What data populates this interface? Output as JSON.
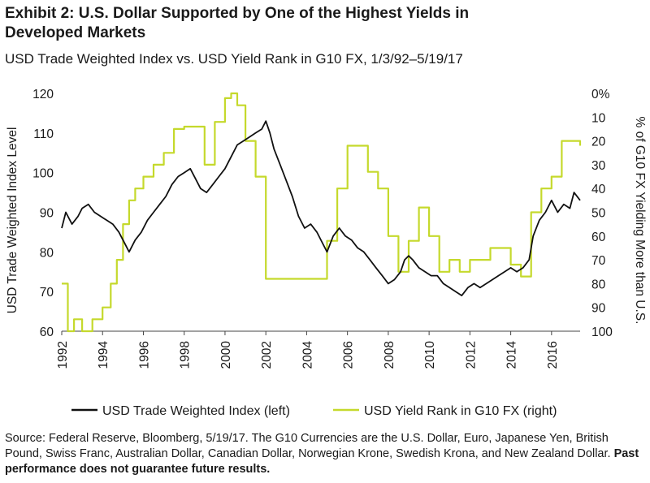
{
  "chart_data": {
    "type": "line",
    "title": "Exhibit 2: U.S. Dollar Supported by One of the Highest Yields in Developed Markets",
    "subtitle": "USD Trade Weighted Index vs. USD Yield Rank in G10 FX, 1/3/92–5/19/17",
    "ylabel_left": "USD Trade Weighted Index Level",
    "ylabel_right": "% of G10 FX Yielding More than U.S.",
    "x_ticks": [
      "1992",
      "1994",
      "1996",
      "1998",
      "2000",
      "2002",
      "2004",
      "2006",
      "2008",
      "2010",
      "2012",
      "2014",
      "2016"
    ],
    "y_left_ticks": [
      "60",
      "70",
      "80",
      "90",
      "100",
      "110",
      "120"
    ],
    "y_right_ticks": [
      "0%",
      "10",
      "20",
      "30",
      "40",
      "50",
      "60",
      "70",
      "80",
      "90",
      "100"
    ],
    "xlim": [
      1992,
      2017.4
    ],
    "ylim_left": [
      60,
      120
    ],
    "ylim_right_inverted": [
      0,
      100
    ],
    "series": [
      {
        "name": "USD Trade Weighted Index (left)",
        "axis": "left",
        "color": "#111111",
        "x": [
          1992.0,
          1992.2,
          1992.5,
          1992.8,
          1993.0,
          1993.3,
          1993.6,
          1993.9,
          1994.2,
          1994.5,
          1994.8,
          1995.1,
          1995.3,
          1995.6,
          1995.9,
          1996.2,
          1996.5,
          1996.8,
          1997.1,
          1997.4,
          1997.7,
          1998.0,
          1998.3,
          1998.6,
          1998.8,
          1999.1,
          1999.4,
          1999.7,
          2000.0,
          2000.3,
          2000.6,
          2000.9,
          2001.2,
          2001.5,
          2001.8,
          2002.0,
          2002.2,
          2002.4,
          2002.7,
          2003.0,
          2003.3,
          2003.6,
          2003.9,
          2004.2,
          2004.5,
          2004.8,
          2005.0,
          2005.3,
          2005.6,
          2005.9,
          2006.2,
          2006.5,
          2006.8,
          2007.1,
          2007.4,
          2007.7,
          2008.0,
          2008.3,
          2008.6,
          2008.8,
          2009.0,
          2009.2,
          2009.5,
          2009.8,
          2010.1,
          2010.4,
          2010.7,
          2011.0,
          2011.3,
          2011.6,
          2011.9,
          2012.2,
          2012.5,
          2012.8,
          2013.1,
          2013.4,
          2013.7,
          2014.0,
          2014.3,
          2014.6,
          2014.9,
          2015.1,
          2015.4,
          2015.7,
          2016.0,
          2016.3,
          2016.6,
          2016.9,
          2017.1,
          2017.4
        ],
        "values": [
          86,
          90,
          87,
          89,
          91,
          92,
          90,
          89,
          88,
          87,
          85,
          82,
          80,
          83,
          85,
          88,
          90,
          92,
          94,
          97,
          99,
          100,
          101,
          98,
          96,
          95,
          97,
          99,
          101,
          104,
          107,
          108,
          109,
          110,
          111,
          113,
          110,
          106,
          102,
          98,
          94,
          89,
          86,
          87,
          85,
          82,
          80,
          84,
          86,
          84,
          83,
          81,
          80,
          78,
          76,
          74,
          72,
          73,
          75,
          78,
          79,
          78,
          76,
          75,
          74,
          74,
          72,
          71,
          70,
          69,
          71,
          72,
          71,
          72,
          73,
          74,
          75,
          76,
          75,
          76,
          78,
          84,
          88,
          90,
          93,
          90,
          92,
          91,
          95,
          93
        ]
      },
      {
        "name": "USD Yield Rank in G10 FX (right)",
        "axis": "right",
        "color": "#c5d92c",
        "x": [
          1992.0,
          1992.3,
          1992.6,
          1993.0,
          1993.5,
          1994.0,
          1994.4,
          1994.7,
          1995.0,
          1995.3,
          1995.6,
          1996.0,
          1996.5,
          1997.0,
          1997.5,
          1998.0,
          1998.5,
          1999.0,
          1999.5,
          2000.0,
          2000.3,
          2000.6,
          2001.0,
          2001.5,
          2002.0,
          2002.5,
          2003.0,
          2003.5,
          2004.0,
          2004.5,
          2005.0,
          2005.5,
          2006.0,
          2006.5,
          2007.0,
          2007.5,
          2008.0,
          2008.5,
          2009.0,
          2009.5,
          2010.0,
          2010.5,
          2011.0,
          2011.5,
          2012.0,
          2012.5,
          2013.0,
          2013.5,
          2014.0,
          2014.5,
          2015.0,
          2015.5,
          2016.0,
          2016.5,
          2017.0,
          2017.4
        ],
        "values": [
          80,
          100,
          95,
          100,
          95,
          90,
          80,
          70,
          55,
          45,
          40,
          35,
          30,
          25,
          15,
          14,
          14,
          30,
          12,
          2,
          0,
          5,
          20,
          35,
          78,
          78,
          78,
          78,
          78,
          78,
          62,
          40,
          22,
          22,
          33,
          40,
          60,
          75,
          62,
          48,
          60,
          75,
          70,
          75,
          70,
          70,
          65,
          65,
          72,
          77,
          50,
          40,
          35,
          20,
          20,
          22
        ]
      }
    ],
    "legend": [
      "USD Trade Weighted Index (left)",
      "USD Yield Rank in G10 FX (right)"
    ],
    "legend_position": "bottom-center"
  },
  "text": {
    "title_line1": "Exhibit 2: U.S. Dollar Supported by One of the Highest Yields in",
    "title_line2": "Developed Markets",
    "subtitle": "USD Trade Weighted Index vs. USD Yield Rank in G10 FX, 1/3/92–5/19/17",
    "footnote_plain": "Source: Federal Reserve, Bloomberg, 5/19/17. The G10 Currencies are the U.S. Dollar, Euro, Japanese Yen, British Pound, Swiss Franc, Australian Dollar, Canadian Dollar, Norwegian Krone, Swedish Krona, and New Zealand Dollar. ",
    "footnote_bold": "Past performance does not guarantee future results."
  }
}
